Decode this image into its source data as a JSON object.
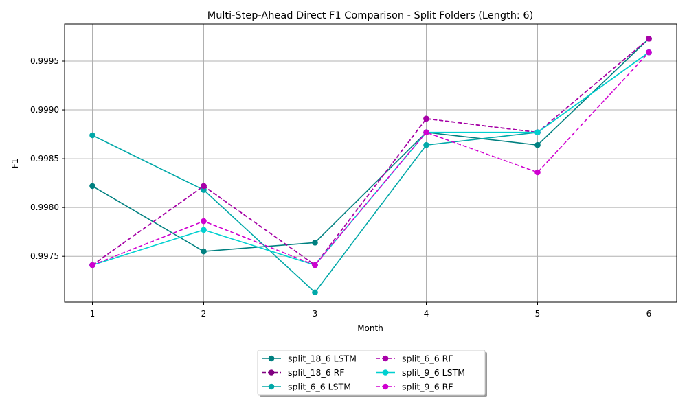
{
  "chart_data": {
    "type": "line",
    "title": "Multi-Step-Ahead Direct F1 Comparison - Split Folders (Length: 6)",
    "xlabel": "Month",
    "ylabel": "F1",
    "x": [
      1,
      2,
      3,
      4,
      5,
      6
    ],
    "xlim": [
      0.75,
      6.25
    ],
    "ylim": [
      0.99703,
      0.99988
    ],
    "yticks": [
      "0.9975",
      "0.9980",
      "0.9985",
      "0.9990",
      "0.9995"
    ],
    "xticks": [
      "1",
      "2",
      "3",
      "4",
      "5",
      "6"
    ],
    "grid": true,
    "legend_position": "bottom-center",
    "series": [
      {
        "name": "split_18_6 LSTM",
        "color": "#008080",
        "dashed": false,
        "values": [
          0.99822,
          0.99755,
          0.99764,
          0.99877,
          0.99864,
          0.99973
        ]
      },
      {
        "name": "split_18_6 RF",
        "color": "#800080",
        "dashed": true,
        "values": [
          0.99741,
          0.99822,
          0.99741,
          0.99891,
          0.99877,
          0.99973
        ]
      },
      {
        "name": "split_6_6 LSTM",
        "color": "#00A8A8",
        "dashed": false,
        "values": [
          0.99874,
          0.99818,
          0.99713,
          0.99864,
          0.99877,
          0.99959
        ]
      },
      {
        "name": "split_6_6 RF",
        "color": "#A800A8",
        "dashed": true,
        "values": [
          0.99741,
          0.99822,
          0.99741,
          0.99891,
          0.99877,
          0.99973
        ]
      },
      {
        "name": "split_9_6 LSTM",
        "color": "#00D0D0",
        "dashed": false,
        "values": [
          0.99741,
          0.99777,
          0.99741,
          0.99877,
          0.99877,
          0.99959
        ]
      },
      {
        "name": "split_9_6 RF",
        "color": "#D000D0",
        "dashed": true,
        "values": [
          0.99741,
          0.99786,
          0.99741,
          0.99877,
          0.99836,
          0.99959
        ]
      }
    ]
  }
}
